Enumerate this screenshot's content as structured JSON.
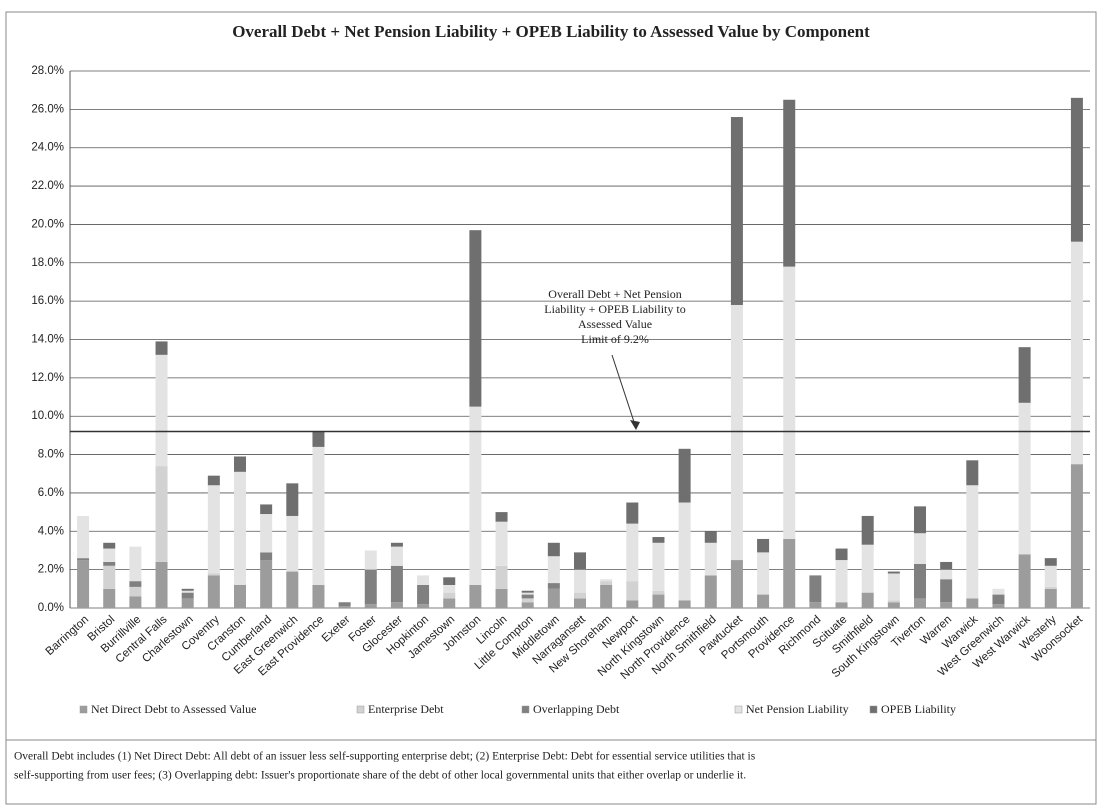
{
  "chart_data": {
    "type": "stacked_bar",
    "title": "Overall Debt + Net Pension Liability + OPEB Liability to Assessed Value by Component",
    "categories": [
      "Barrington",
      "Bristol",
      "Burrillville",
      "Central Falls",
      "Charlestown",
      "Coventry",
      "Cranston",
      "Cumberland",
      "East Greenwich",
      "East Providence",
      "Exeter",
      "Foster",
      "Glocester",
      "Hopkinton",
      "Jamestown",
      "Johnston",
      "Lincoln",
      "Little Compton",
      "Middletown",
      "Narragansett",
      "New Shoreham",
      "Newport",
      "North Kingstown",
      "North Providence",
      "North Smithfield",
      "Pawtucket",
      "Portsmouth",
      "Providence",
      "Richmond",
      "Scituate",
      "Smithfield",
      "South Kingstown",
      "Tiverton",
      "Warren",
      "Warwick",
      "West Greenwich",
      "West Warwick",
      "Westerly",
      "Woonsocket"
    ],
    "series": [
      {
        "name": "Net Direct Debt to Assessed Value",
        "color": "#9c9c9c",
        "values": [
          2.5,
          1.0,
          0.6,
          2.4,
          0.5,
          1.7,
          1.2,
          2.5,
          1.9,
          1.2,
          0.1,
          0.2,
          0.3,
          0.2,
          0.5,
          1.2,
          1.0,
          0.3,
          1.0,
          0.5,
          1.2,
          0.4,
          0.7,
          0.4,
          1.7,
          2.5,
          0.7,
          3.6,
          0.3,
          0.3,
          0.8,
          0.3,
          0.5,
          0.3,
          0.5,
          0.2,
          2.8,
          1.0,
          7.5
        ]
      },
      {
        "name": "Enterprise Debt",
        "color": "#d2d2d2",
        "values": [
          0,
          1.2,
          0.5,
          5.0,
          0,
          0.1,
          0,
          0,
          0,
          0,
          0,
          0,
          0,
          0,
          0.3,
          0,
          1.2,
          0.2,
          0,
          0.3,
          0.2,
          1.0,
          0.2,
          0,
          0,
          0,
          0,
          0,
          0,
          0,
          0,
          0.1,
          0,
          0,
          0,
          0,
          0,
          0.1,
          0
        ]
      },
      {
        "name": "Overlapping Debt",
        "color": "#808080",
        "values": [
          0.1,
          0.2,
          0.3,
          0,
          0.3,
          0,
          0,
          0.4,
          0,
          0,
          0.2,
          1.8,
          1.9,
          1.0,
          0,
          0,
          0,
          0.2,
          0.3,
          0,
          0,
          0,
          0,
          0,
          0,
          0,
          0,
          0,
          1.4,
          0,
          0,
          0,
          1.8,
          1.2,
          0,
          0.5,
          0,
          0,
          0
        ]
      },
      {
        "name": "Net Pension Liability",
        "color": "#e3e3e3",
        "values": [
          2.2,
          0.7,
          1.8,
          5.8,
          0.1,
          4.6,
          5.9,
          2.0,
          2.9,
          7.2,
          0,
          1.0,
          1.0,
          0.5,
          0.4,
          9.3,
          2.3,
          0.1,
          1.4,
          1.2,
          0.1,
          3.0,
          2.5,
          5.1,
          1.7,
          13.3,
          2.2,
          14.2,
          0,
          2.2,
          2.5,
          1.4,
          1.6,
          0.5,
          5.9,
          0.3,
          7.9,
          1.1,
          11.6
        ]
      },
      {
        "name": "OPEB Liability",
        "color": "#6f6f6f",
        "values": [
          0,
          0.3,
          0,
          0.7,
          0.1,
          0.5,
          0.8,
          0.5,
          1.7,
          0.8,
          0,
          0,
          0.2,
          0,
          0.4,
          9.2,
          0.5,
          0.1,
          0.7,
          0.9,
          0,
          1.1,
          0.3,
          2.8,
          0.6,
          9.8,
          0.7,
          8.7,
          0,
          0.6,
          1.5,
          0.1,
          1.4,
          0.4,
          1.3,
          0,
          2.9,
          0.4,
          7.5
        ]
      }
    ],
    "ylim": [
      0,
      28
    ],
    "yticks": [
      {
        "value": 0,
        "label": "0.0%"
      },
      {
        "value": 2,
        "label": "2.0%"
      },
      {
        "value": 4,
        "label": "4.0%"
      },
      {
        "value": 6,
        "label": "6.0%"
      },
      {
        "value": 8,
        "label": "8.0%"
      },
      {
        "value": 10,
        "label": "10.0%"
      },
      {
        "value": 12,
        "label": "12.0%"
      },
      {
        "value": 14,
        "label": "14.0%"
      },
      {
        "value": 16,
        "label": "16.0%"
      },
      {
        "value": 18,
        "label": "18.0%"
      },
      {
        "value": 20,
        "label": "20.0%"
      },
      {
        "value": 22,
        "label": "22.0%"
      },
      {
        "value": 24,
        "label": "24.0%"
      },
      {
        "value": 26,
        "label": "26.0%"
      },
      {
        "value": 28,
        "label": "28.0%"
      }
    ],
    "grid": true,
    "limit_line": 9.2,
    "annotation": [
      "Overall Debt + Net Pension",
      "Liability + OPEB Liability to",
      "Assessed Value",
      "Limit of 9.2%"
    ],
    "legend": "bottom",
    "footnote": [
      "Overall Debt includes (1) Net Direct Debt: All debt of an issuer less self-supporting enterprise debt; (2)  Enterprise Debt: Debt for essential service utilities that is",
      "self-supporting from user fees; (3) Overlapping debt: Issuer's proportionate share of the debt of other local governmental units that either overlap or underlie it."
    ]
  }
}
